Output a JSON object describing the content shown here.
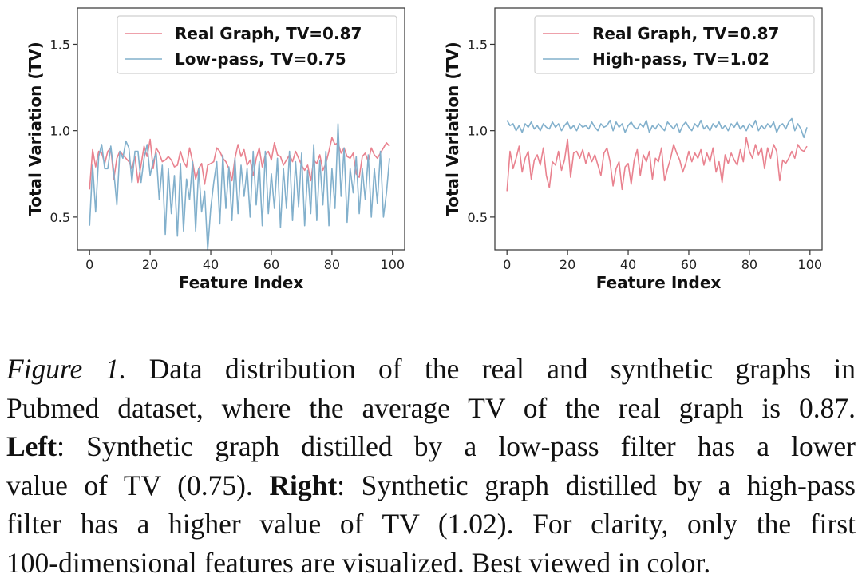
{
  "chart_data": [
    {
      "type": "line",
      "xlabel": "Feature Index",
      "ylabel": "Total Variation (TV)",
      "xlim": [
        -4,
        104
      ],
      "ylim": [
        0.31,
        1.71
      ],
      "xticks": [
        0,
        20,
        40,
        60,
        80,
        100
      ],
      "yticks": [
        0.5,
        1.0,
        1.5
      ],
      "legend": "top-right",
      "grid": false,
      "series": [
        {
          "name": "Real Graph, TV=0.87",
          "color": "#e9828f",
          "values": [
            0.66,
            0.89,
            0.79,
            0.88,
            0.87,
            0.81,
            0.88,
            0.9,
            0.72,
            0.84,
            0.88,
            0.86,
            0.84,
            0.82,
            0.78,
            0.85,
            0.7,
            0.8,
            0.91,
            0.85,
            0.95,
            0.78,
            0.9,
            0.87,
            0.82,
            0.83,
            0.85,
            0.83,
            0.79,
            0.8,
            0.88,
            0.82,
            0.79,
            0.9,
            0.82,
            0.72,
            0.78,
            0.81,
            0.69,
            0.8,
            0.81,
            0.82,
            0.9,
            0.88,
            0.84,
            0.82,
            0.78,
            0.71,
            0.84,
            0.92,
            0.85,
            0.89,
            0.8,
            0.83,
            0.74,
            0.84,
            0.9,
            0.79,
            0.86,
            0.88,
            0.83,
            0.93,
            0.86,
            0.85,
            0.8,
            0.83,
            0.86,
            0.82,
            0.88,
            0.84,
            0.8,
            0.77,
            0.8,
            0.71,
            0.83,
            0.81,
            0.86,
            0.77,
            0.81,
            0.88,
            0.96,
            0.92,
            0.93,
            0.87,
            0.9,
            0.85,
            0.84,
            0.87,
            0.75,
            0.73,
            0.85,
            0.87,
            0.82,
            0.9,
            0.86,
            0.84,
            0.87,
            0.9,
            0.93,
            0.91
          ]
        },
        {
          "name": "Low-pass, TV=0.75",
          "color": "#82b0cc",
          "values": [
            0.45,
            0.8,
            0.53,
            0.85,
            0.92,
            0.78,
            0.78,
            0.91,
            0.76,
            0.57,
            0.88,
            0.84,
            0.94,
            0.9,
            0.7,
            0.88,
            0.88,
            0.7,
            0.84,
            0.92,
            0.74,
            0.82,
            0.87,
            0.6,
            0.8,
            0.4,
            0.78,
            0.52,
            0.74,
            0.39,
            0.81,
            0.42,
            0.72,
            0.6,
            0.82,
            0.42,
            0.78,
            0.53,
            0.65,
            0.31,
            0.55,
            0.7,
            0.82,
            0.46,
            0.86,
            0.55,
            0.79,
            0.48,
            0.84,
            0.52,
            0.8,
            0.62,
            0.78,
            0.5,
            0.88,
            0.57,
            0.82,
            0.45,
            0.88,
            0.52,
            0.75,
            0.55,
            0.84,
            0.44,
            0.78,
            0.55,
            0.88,
            0.48,
            0.82,
            0.56,
            0.87,
            0.45,
            0.77,
            0.52,
            0.92,
            0.48,
            0.83,
            0.57,
            0.88,
            0.45,
            0.78,
            0.55,
            1.04,
            0.62,
            0.9,
            0.47,
            0.78,
            0.64,
            0.85,
            0.52,
            0.78,
            0.6,
            0.86,
            0.5,
            0.78,
            0.58,
            0.88,
            0.5,
            0.64,
            0.84
          ]
        }
      ]
    },
    {
      "type": "line",
      "xlabel": "Feature Index",
      "ylabel": "Total Variation (TV)",
      "xlim": [
        -4,
        104
      ],
      "ylim": [
        0.31,
        1.71
      ],
      "xticks": [
        0,
        20,
        40,
        60,
        80,
        100
      ],
      "yticks": [
        0.5,
        1.0,
        1.5
      ],
      "legend": "top-right",
      "grid": false,
      "series": [
        {
          "name": "Real Graph, TV=0.87",
          "color": "#e9828f",
          "values": [
            0.65,
            0.88,
            0.78,
            0.84,
            0.91,
            0.76,
            0.84,
            0.88,
            0.72,
            0.83,
            0.86,
            0.8,
            0.9,
            0.74,
            0.67,
            0.82,
            0.8,
            0.88,
            0.77,
            0.83,
            0.95,
            0.73,
            0.87,
            0.88,
            0.84,
            0.89,
            0.81,
            0.87,
            0.82,
            0.86,
            0.8,
            0.74,
            0.87,
            0.9,
            0.82,
            0.68,
            0.78,
            0.82,
            0.66,
            0.79,
            0.81,
            0.69,
            0.83,
            0.89,
            0.74,
            0.86,
            0.82,
            0.88,
            0.72,
            0.84,
            0.82,
            0.9,
            0.71,
            0.78,
            0.84,
            0.92,
            0.87,
            0.83,
            0.76,
            0.81,
            0.88,
            0.82,
            0.87,
            0.84,
            0.89,
            0.8,
            0.87,
            0.82,
            0.9,
            0.76,
            0.82,
            0.7,
            0.86,
            0.81,
            0.87,
            0.83,
            0.8,
            0.89,
            0.82,
            0.96,
            0.88,
            0.84,
            0.92,
            0.86,
            0.9,
            0.78,
            0.9,
            0.84,
            0.92,
            0.88,
            0.71,
            0.83,
            0.81,
            0.84,
            0.88,
            0.84,
            0.92,
            0.89,
            0.88,
            0.91
          ]
        },
        {
          "name": "High-pass, TV=1.02",
          "color": "#82b0cc",
          "values": [
            1.06,
            1.03,
            1.04,
            1.0,
            1.03,
            0.99,
            1.04,
            1.02,
            1.05,
            1.01,
            1.03,
            1.0,
            1.04,
            1.02,
            1.01,
            1.05,
            1.02,
            1.04,
            1.0,
            1.03,
            1.05,
            1.01,
            1.03,
            1.0,
            1.04,
            1.02,
            1.03,
            1.01,
            1.05,
            1.02,
            1.0,
            1.04,
            1.02,
            1.03,
            1.06,
            1.0,
            1.05,
            1.02,
            1.04,
            0.99,
            1.03,
            1.05,
            1.02,
            1.01,
            1.04,
            1.02,
            1.06,
            0.99,
            1.03,
            1.01,
            1.04,
            1.02,
            1.0,
            1.05,
            1.03,
            1.01,
            1.04,
            0.99,
            1.03,
            1.05,
            1.02,
            1.0,
            1.04,
            1.02,
            1.06,
            1.01,
            1.03,
            1.0,
            1.04,
            1.02,
            1.05,
            1.01,
            1.03,
            1.0,
            1.04,
            1.02,
            1.05,
            1.01,
            1.03,
            1.0,
            1.04,
            1.02,
            1.06,
            1.0,
            1.03,
            1.01,
            1.04,
            1.02,
            1.05,
            0.99,
            1.03,
            1.04,
            1.01,
            1.05,
            1.07,
            1.0,
            1.04,
            1.01,
            0.96,
            1.02
          ]
        }
      ]
    }
  ],
  "caption": {
    "fig_label": "Figure 1.",
    "l1_rest": " Data distribution of the real and synthetic graphs in",
    "l2": "Pubmed dataset, where the average TV of the real graph is 0.87.",
    "l3_bold": "Left",
    "l3_rest": ":  Synthetic graph distilled by a low-pass filter has a lower",
    "l4_pre": "value of TV (0.75). ",
    "l4_bold": "Right",
    "l4_rest": ": Synthetic graph distilled by a high-pass",
    "l5": "filter has a higher value of TV (1.02).  For clarity, only the first",
    "l6": "100-dimensional features are visualized. Best viewed in color."
  }
}
